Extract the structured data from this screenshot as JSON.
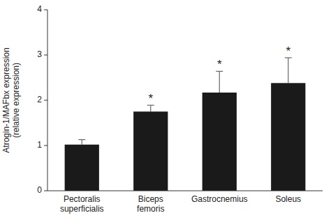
{
  "chart_data": {
    "type": "bar",
    "categories": [
      "Pectoralis\nsuperficialis",
      "Biceps\nfemoris",
      "Gastrocnemius",
      "Soleus"
    ],
    "values": [
      1.02,
      1.75,
      2.17,
      2.38
    ],
    "errors": [
      0.11,
      0.14,
      0.47,
      0.56
    ],
    "annotations": [
      null,
      "*",
      "*",
      "*"
    ],
    "color": "#1a1a1a",
    "ylabel": "Atrogin-1/MAFbx expression\n(relative expression)",
    "ylim": [
      0,
      4
    ],
    "yticks": [
      0,
      1,
      2,
      3,
      4
    ],
    "grid": false
  }
}
